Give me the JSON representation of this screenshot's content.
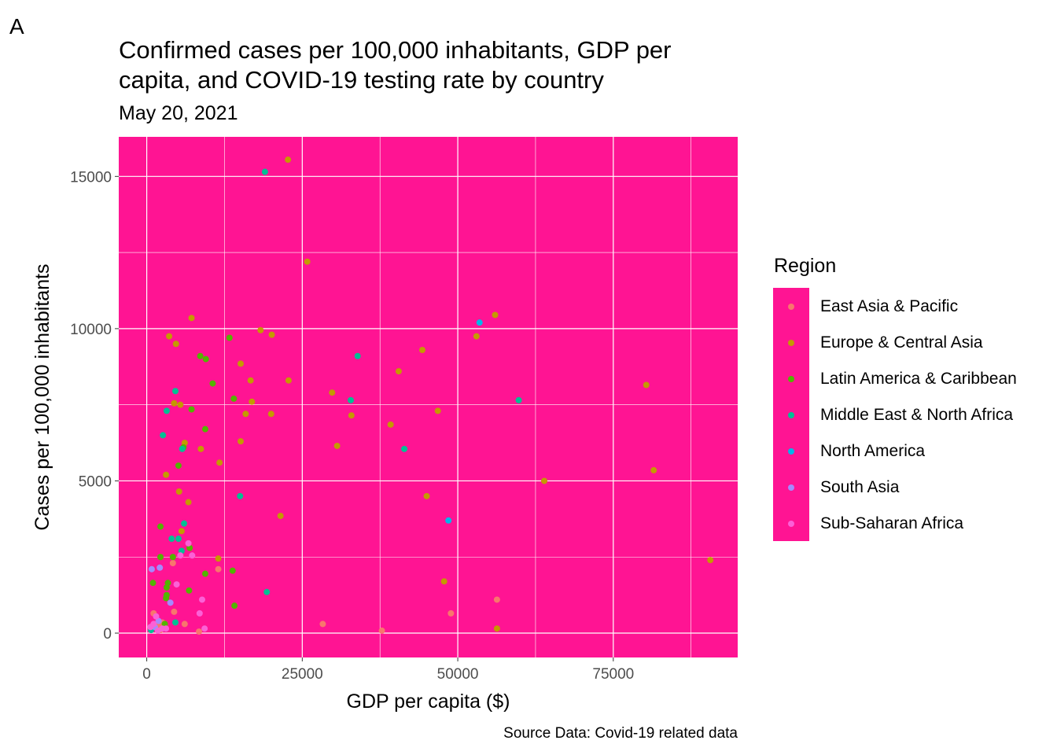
{
  "panel_tag": "A",
  "chart_data": {
    "type": "scatter",
    "title_lines": [
      "Confirmed cases per 100,000 inhabitants, GDP per",
      "capita, and COVID-19 testing rate by country"
    ],
    "subtitle": "May 20, 2021",
    "xlabel": "GDP per capita ($)",
    "ylabel": "Cases per 100,000 inhabitants",
    "caption": "Source Data: Covid-19 related data",
    "xlim": [
      -4500,
      95000
    ],
    "ylim": [
      -800,
      16300
    ],
    "x_ticks": [
      0,
      25000,
      50000,
      75000
    ],
    "x_tick_labels": [
      "0",
      "25000",
      "50000",
      "75000"
    ],
    "y_ticks": [
      0,
      5000,
      10000,
      15000
    ],
    "y_tick_labels": [
      "0",
      "5000",
      "10000",
      "15000"
    ],
    "panel_background": "#ff1493",
    "grid": true,
    "legend_title": "Region",
    "legend_position": "right",
    "series": [
      {
        "name": "East Asia & Pacific",
        "color": "#F8766D",
        "points": [
          [
            1100,
            650
          ],
          [
            1500,
            300
          ],
          [
            2000,
            200
          ],
          [
            2200,
            100
          ],
          [
            2500,
            350
          ],
          [
            4200,
            2300
          ],
          [
            4400,
            700
          ],
          [
            6100,
            300
          ],
          [
            8400,
            50
          ],
          [
            11500,
            2100
          ],
          [
            28300,
            300
          ],
          [
            37800,
            80
          ],
          [
            48900,
            650
          ],
          [
            56300,
            1100
          ]
        ]
      },
      {
        "name": "Europe & Central Asia",
        "color": "#C49A00",
        "points": [
          [
            22700,
            15550
          ],
          [
            25800,
            12200
          ],
          [
            7200,
            10350
          ],
          [
            56000,
            10450
          ],
          [
            3600,
            9750
          ],
          [
            4700,
            9500
          ],
          [
            18300,
            9950
          ],
          [
            20100,
            9800
          ],
          [
            53000,
            9750
          ],
          [
            44300,
            9300
          ],
          [
            15100,
            8850
          ],
          [
            40500,
            8600
          ],
          [
            16700,
            8300
          ],
          [
            22800,
            8300
          ],
          [
            80300,
            8150
          ],
          [
            29800,
            7900
          ],
          [
            4400,
            7550
          ],
          [
            5400,
            7500
          ],
          [
            16900,
            7600
          ],
          [
            46800,
            7300
          ],
          [
            15900,
            7200
          ],
          [
            20000,
            7200
          ],
          [
            32900,
            7150
          ],
          [
            39200,
            6850
          ],
          [
            6100,
            6250
          ],
          [
            8700,
            6050
          ],
          [
            30600,
            6150
          ],
          [
            15100,
            6300
          ],
          [
            11700,
            5600
          ],
          [
            3100,
            5200
          ],
          [
            81500,
            5350
          ],
          [
            63900,
            5000
          ],
          [
            5200,
            4650
          ],
          [
            6700,
            4300
          ],
          [
            45000,
            4500
          ],
          [
            21500,
            3850
          ],
          [
            5600,
            3350
          ],
          [
            11500,
            2450
          ],
          [
            90600,
            2400
          ],
          [
            47800,
            1700
          ],
          [
            56300,
            150
          ]
        ]
      },
      {
        "name": "Latin America & Caribbean",
        "color": "#53B400",
        "points": [
          [
            13300,
            9700
          ],
          [
            8600,
            9100
          ],
          [
            9500,
            9000
          ],
          [
            10600,
            8200
          ],
          [
            14000,
            7700
          ],
          [
            7200,
            7350
          ],
          [
            9400,
            6700
          ],
          [
            5900,
            6100
          ],
          [
            5100,
            5500
          ],
          [
            2200,
            3500
          ],
          [
            6900,
            2800
          ],
          [
            4200,
            2500
          ],
          [
            2200,
            2500
          ],
          [
            9400,
            1950
          ],
          [
            13800,
            2050
          ],
          [
            1000,
            1650
          ],
          [
            3200,
            1500
          ],
          [
            3400,
            1650
          ],
          [
            3200,
            1250
          ],
          [
            3100,
            1150
          ],
          [
            14100,
            900
          ],
          [
            2900,
            300
          ],
          [
            6800,
            1400
          ]
        ]
      },
      {
        "name": "Middle East & North Africa",
        "color": "#00C094",
        "points": [
          [
            19000,
            15150
          ],
          [
            33900,
            9100
          ],
          [
            59800,
            7650
          ],
          [
            4600,
            7950
          ],
          [
            3200,
            7300
          ],
          [
            32800,
            7650
          ],
          [
            2600,
            6500
          ],
          [
            41400,
            6050
          ],
          [
            5700,
            6050
          ],
          [
            15000,
            4500
          ],
          [
            6000,
            3600
          ],
          [
            4000,
            3100
          ],
          [
            5100,
            3100
          ],
          [
            5600,
            2700
          ],
          [
            19300,
            1350
          ],
          [
            4600,
            350
          ],
          [
            700,
            100
          ]
        ]
      },
      {
        "name": "North America",
        "color": "#00B6EB",
        "points": [
          [
            53500,
            10200
          ],
          [
            48500,
            3700
          ]
        ]
      },
      {
        "name": "South Asia",
        "color": "#A58AFF",
        "points": [
          [
            800,
            2100
          ],
          [
            2100,
            2150
          ],
          [
            3800,
            1000
          ],
          [
            1900,
            400
          ],
          [
            1300,
            200
          ]
        ]
      },
      {
        "name": "Sub-Saharan Africa",
        "color": "#FB61D7",
        "points": [
          [
            6700,
            2950
          ],
          [
            5400,
            2550
          ],
          [
            7300,
            2550
          ],
          [
            4800,
            1600
          ],
          [
            8900,
            1100
          ],
          [
            8500,
            650
          ],
          [
            1500,
            550
          ],
          [
            9300,
            150
          ],
          [
            2500,
            150
          ],
          [
            600,
            200
          ],
          [
            1100,
            300
          ],
          [
            3100,
            150
          ],
          [
            1800,
            80
          ]
        ]
      }
    ]
  }
}
